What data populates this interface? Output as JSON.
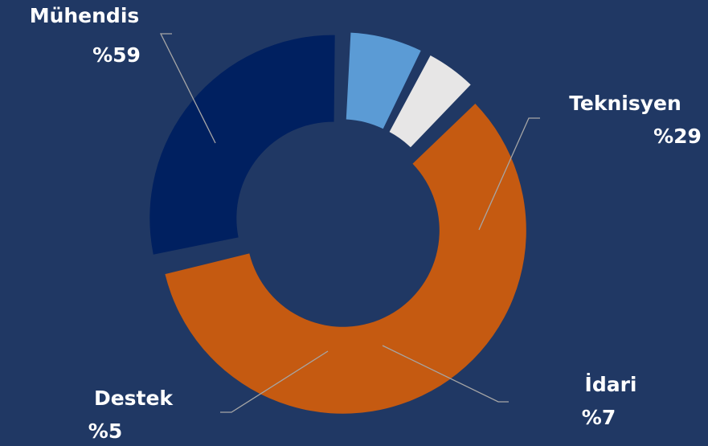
{
  "chart_data": {
    "type": "pie",
    "style": "exploded-donut",
    "title": "",
    "slices": [
      {
        "name": "Mühendis",
        "percent_label": "%59",
        "value": 59,
        "color": "#C55A11"
      },
      {
        "name": "Teknisyen",
        "percent_label": "%29",
        "value": 29,
        "color": "#002060"
      },
      {
        "name": "İdari",
        "percent_label": "%7",
        "value": 7,
        "color": "#5B9BD5"
      },
      {
        "name": "Destek",
        "percent_label": "%5",
        "value": 5,
        "color": "#E7E6E6"
      }
    ],
    "legend": "none",
    "labels": "outside-with-leader-lines"
  },
  "colors": {
    "background": "#203864",
    "label_text": "#FFFFFF",
    "leader_line": "#A6A6A6"
  }
}
